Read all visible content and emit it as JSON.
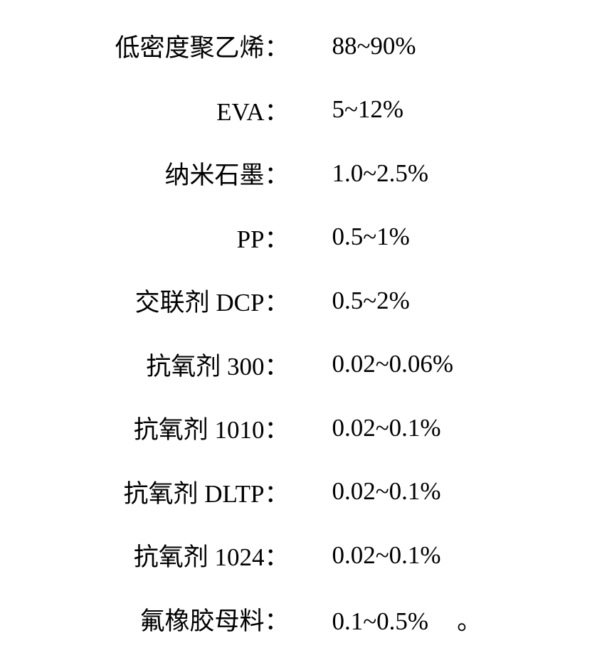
{
  "table": {
    "type": "two-column-list",
    "background_color": "#ffffff",
    "text_color": "#000000",
    "font_size": 35,
    "rows": [
      {
        "label": "低密度聚乙烯：",
        "value": "88~90%"
      },
      {
        "label": "EVA：",
        "value": "5~12%"
      },
      {
        "label": "纳米石墨：",
        "value": "1.0~2.5%"
      },
      {
        "label": "PP：",
        "value": "0.5~1%"
      },
      {
        "label": "交联剂 DCP：",
        "value": "0.5~2%"
      },
      {
        "label": "抗氧剂 300：",
        "value": "0.02~0.06%"
      },
      {
        "label": "抗氧剂 1010：",
        "value": "0.02~0.1%"
      },
      {
        "label": "抗氧剂 DLTP：",
        "value": "0.02~0.1%"
      },
      {
        "label": "抗氧剂 1024：",
        "value": "0.02~0.1%"
      },
      {
        "label": "氟橡胶母料：",
        "value": "0.1~0.5%"
      }
    ],
    "end_mark": "。"
  }
}
